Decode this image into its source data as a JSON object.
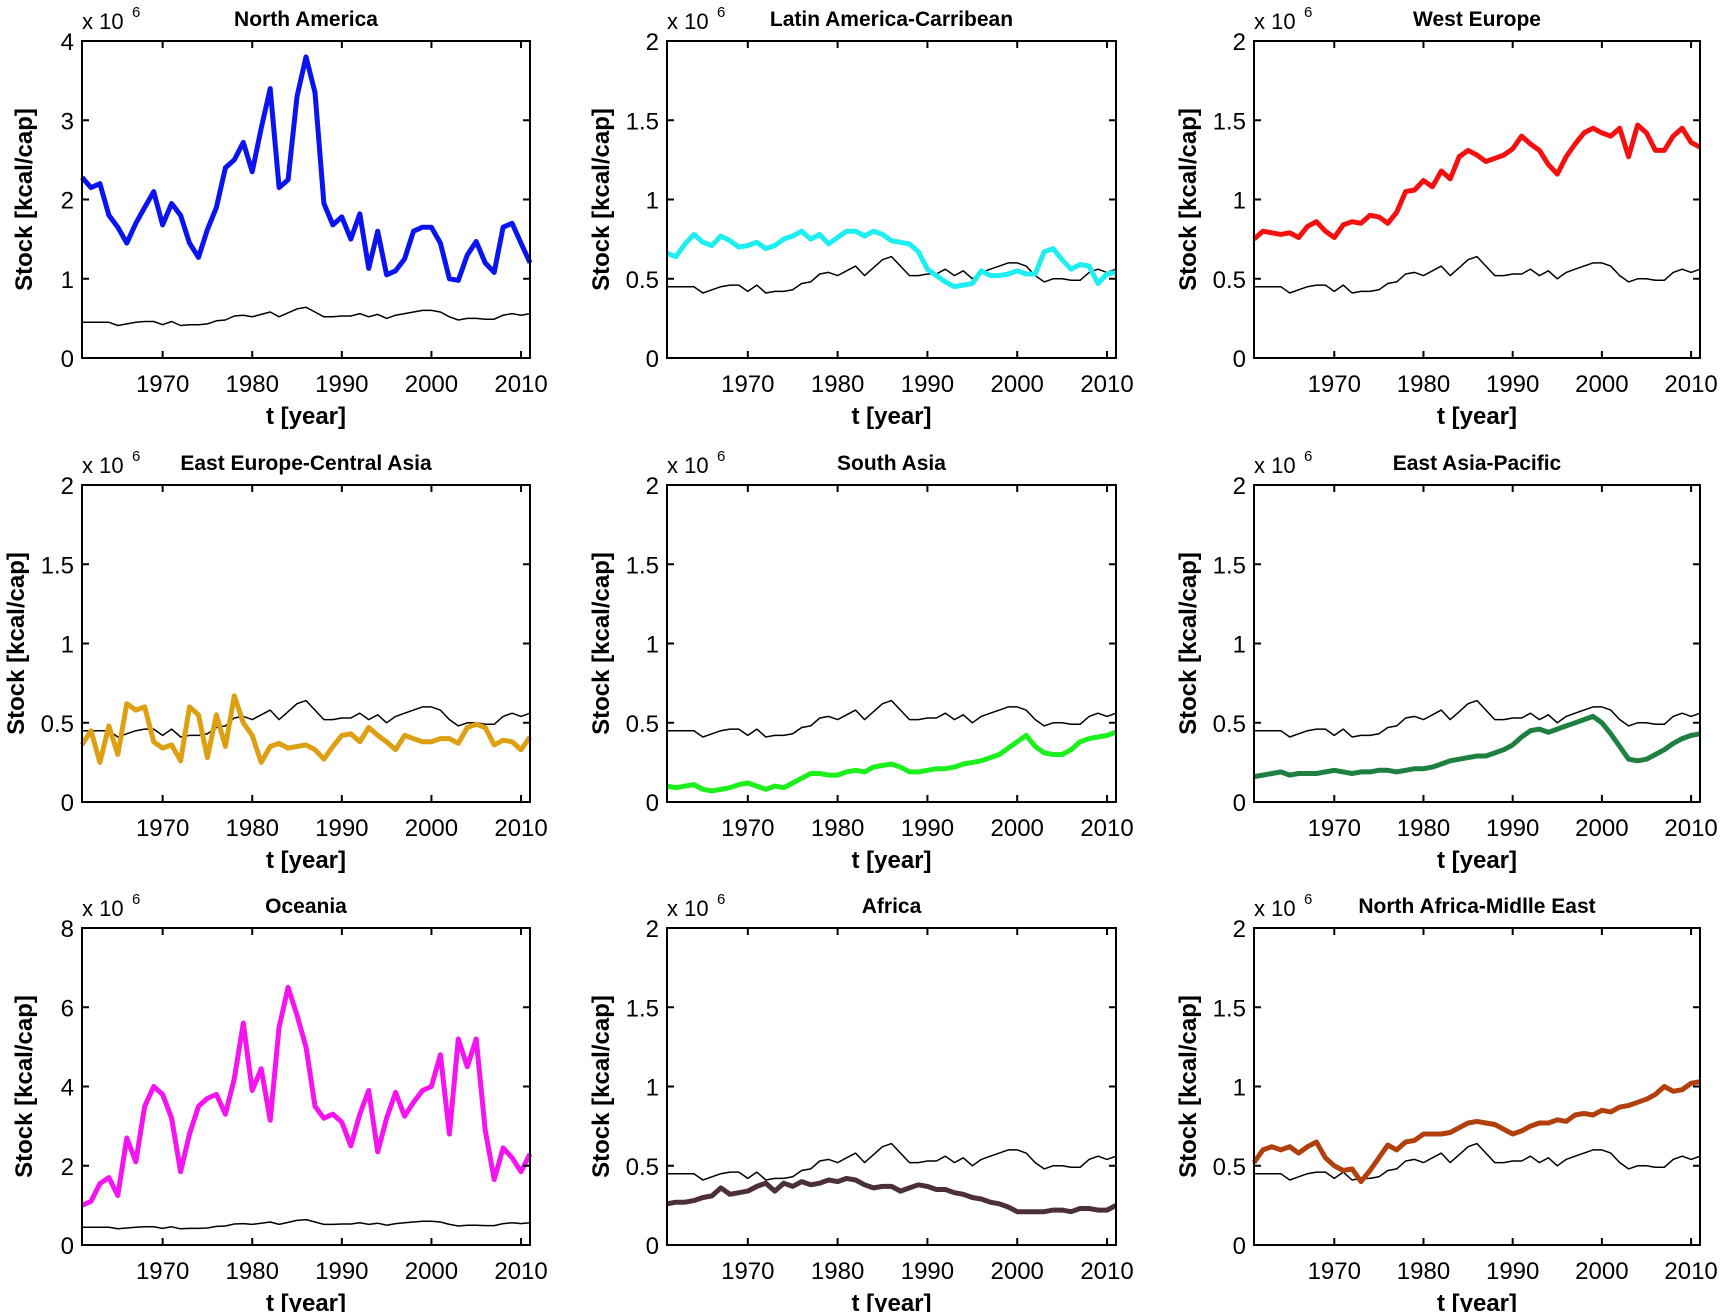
{
  "chart_data": {
    "type": "line",
    "layout": "3x3 grid of line subplots",
    "x": [
      1961,
      1962,
      1963,
      1964,
      1965,
      1966,
      1967,
      1968,
      1969,
      1970,
      1971,
      1972,
      1973,
      1974,
      1975,
      1976,
      1977,
      1978,
      1979,
      1980,
      1981,
      1982,
      1983,
      1984,
      1985,
      1986,
      1987,
      1988,
      1989,
      1990,
      1991,
      1992,
      1993,
      1994,
      1995,
      1996,
      1997,
      1998,
      1999,
      2000,
      2001,
      2002,
      2003,
      2004,
      2005,
      2006,
      2007,
      2008,
      2009,
      2010,
      2011
    ],
    "xlim": [
      1961,
      2011
    ],
    "xticks": [
      "1970",
      "1980",
      "1990",
      "2000",
      "2010"
    ],
    "xlabel": "t [year]",
    "ylabel": "Stock [kcal/cap]",
    "y_multiplier": "x 10",
    "y_multiplier_exp": "6",
    "grid": false,
    "reference_series": {
      "color": "#000000",
      "values": [
        0.45,
        0.45,
        0.45,
        0.45,
        0.41,
        0.43,
        0.45,
        0.46,
        0.46,
        0.42,
        0.46,
        0.41,
        0.42,
        0.42,
        0.43,
        0.47,
        0.48,
        0.53,
        0.54,
        0.52,
        0.55,
        0.58,
        0.52,
        0.57,
        0.62,
        0.64,
        0.58,
        0.52,
        0.52,
        0.53,
        0.53,
        0.56,
        0.52,
        0.55,
        0.5,
        0.54,
        0.56,
        0.58,
        0.6,
        0.6,
        0.58,
        0.52,
        0.48,
        0.5,
        0.5,
        0.49,
        0.49,
        0.54,
        0.56,
        0.54,
        0.56
      ]
    },
    "panels": [
      {
        "title": "North America",
        "color": "#0a14f0",
        "ylim": [
          0,
          4
        ],
        "yticks": [
          "0",
          "1",
          "2",
          "3",
          "4"
        ],
        "values": [
          2.28,
          2.15,
          2.2,
          1.8,
          1.65,
          1.45,
          1.7,
          1.9,
          2.1,
          1.68,
          1.95,
          1.8,
          1.45,
          1.27,
          1.62,
          1.9,
          2.4,
          2.5,
          2.72,
          2.35,
          2.9,
          3.4,
          2.15,
          2.25,
          3.3,
          3.8,
          3.35,
          1.95,
          1.68,
          1.78,
          1.5,
          1.82,
          1.13,
          1.6,
          1.05,
          1.1,
          1.25,
          1.6,
          1.65,
          1.65,
          1.45,
          1.0,
          0.98,
          1.3,
          1.47,
          1.2,
          1.08,
          1.65,
          1.7,
          1.45,
          1.2
        ]
      },
      {
        "title": "Latin America-Carribean",
        "color": "#1eeef0",
        "ylim": [
          0,
          2
        ],
        "yticks": [
          "0",
          "0.5",
          "1",
          "1.5",
          "2"
        ],
        "values": [
          0.66,
          0.64,
          0.72,
          0.78,
          0.73,
          0.71,
          0.77,
          0.74,
          0.7,
          0.71,
          0.73,
          0.69,
          0.71,
          0.75,
          0.77,
          0.8,
          0.75,
          0.78,
          0.72,
          0.76,
          0.8,
          0.8,
          0.77,
          0.8,
          0.78,
          0.74,
          0.73,
          0.72,
          0.67,
          0.56,
          0.52,
          0.48,
          0.45,
          0.46,
          0.47,
          0.55,
          0.52,
          0.52,
          0.53,
          0.55,
          0.53,
          0.53,
          0.67,
          0.69,
          0.62,
          0.56,
          0.59,
          0.58,
          0.47,
          0.53,
          0.54
        ]
      },
      {
        "title": "West Europe",
        "color": "#f51010",
        "ylim": [
          0,
          2
        ],
        "yticks": [
          "0",
          "0.5",
          "1",
          "1.5",
          "2"
        ],
        "values": [
          0.75,
          0.8,
          0.79,
          0.78,
          0.79,
          0.76,
          0.83,
          0.86,
          0.8,
          0.76,
          0.84,
          0.86,
          0.85,
          0.9,
          0.89,
          0.85,
          0.92,
          1.05,
          1.06,
          1.12,
          1.08,
          1.18,
          1.13,
          1.27,
          1.31,
          1.28,
          1.24,
          1.26,
          1.28,
          1.32,
          1.4,
          1.35,
          1.31,
          1.22,
          1.16,
          1.27,
          1.35,
          1.42,
          1.45,
          1.42,
          1.4,
          1.45,
          1.27,
          1.47,
          1.42,
          1.31,
          1.31,
          1.4,
          1.45,
          1.36,
          1.33
        ]
      },
      {
        "title": "East Europe-Central Asia",
        "color": "#dca012",
        "ylim": [
          0,
          2
        ],
        "yticks": [
          "0",
          "0.5",
          "1",
          "1.5",
          "2"
        ],
        "values": [
          0.36,
          0.45,
          0.25,
          0.48,
          0.3,
          0.62,
          0.58,
          0.6,
          0.38,
          0.34,
          0.36,
          0.26,
          0.6,
          0.55,
          0.28,
          0.55,
          0.35,
          0.67,
          0.5,
          0.42,
          0.25,
          0.35,
          0.37,
          0.34,
          0.35,
          0.36,
          0.33,
          0.27,
          0.35,
          0.42,
          0.43,
          0.38,
          0.47,
          0.42,
          0.38,
          0.33,
          0.42,
          0.4,
          0.38,
          0.38,
          0.4,
          0.4,
          0.37,
          0.47,
          0.49,
          0.47,
          0.36,
          0.39,
          0.38,
          0.33,
          0.41
        ]
      },
      {
        "title": "South Asia",
        "color": "#1cf01c",
        "ylim": [
          0,
          2
        ],
        "yticks": [
          "0",
          "0.5",
          "1",
          "1.5",
          "2"
        ],
        "values": [
          0.1,
          0.09,
          0.1,
          0.11,
          0.08,
          0.07,
          0.08,
          0.09,
          0.11,
          0.12,
          0.1,
          0.08,
          0.1,
          0.09,
          0.12,
          0.15,
          0.18,
          0.18,
          0.17,
          0.17,
          0.19,
          0.2,
          0.19,
          0.22,
          0.23,
          0.24,
          0.22,
          0.19,
          0.19,
          0.2,
          0.21,
          0.21,
          0.22,
          0.24,
          0.25,
          0.26,
          0.28,
          0.3,
          0.34,
          0.38,
          0.42,
          0.35,
          0.31,
          0.3,
          0.3,
          0.33,
          0.38,
          0.4,
          0.41,
          0.42,
          0.44
        ]
      },
      {
        "title": "East Asia-Pacific",
        "color": "#1e8040",
        "ylim": [
          0,
          2
        ],
        "yticks": [
          "0",
          "0.5",
          "1",
          "1.5",
          "2"
        ],
        "values": [
          0.16,
          0.17,
          0.18,
          0.19,
          0.17,
          0.18,
          0.18,
          0.18,
          0.19,
          0.2,
          0.19,
          0.18,
          0.19,
          0.19,
          0.2,
          0.2,
          0.19,
          0.2,
          0.21,
          0.21,
          0.22,
          0.24,
          0.26,
          0.27,
          0.28,
          0.29,
          0.29,
          0.31,
          0.33,
          0.36,
          0.41,
          0.45,
          0.46,
          0.44,
          0.46,
          0.48,
          0.5,
          0.52,
          0.54,
          0.5,
          0.43,
          0.35,
          0.27,
          0.26,
          0.27,
          0.3,
          0.33,
          0.37,
          0.4,
          0.42,
          0.43
        ]
      },
      {
        "title": "Oceania",
        "color": "#f514f0",
        "ylim": [
          0,
          8
        ],
        "yticks": [
          "0",
          "2",
          "4",
          "6",
          "8"
        ],
        "values": [
          1.0,
          1.1,
          1.55,
          1.7,
          1.25,
          2.7,
          2.1,
          3.5,
          4.0,
          3.8,
          3.2,
          1.85,
          2.8,
          3.5,
          3.7,
          3.8,
          3.3,
          4.2,
          5.6,
          3.9,
          4.45,
          3.15,
          5.5,
          6.5,
          5.8,
          5.0,
          3.5,
          3.2,
          3.3,
          3.1,
          2.5,
          3.3,
          3.9,
          2.35,
          3.2,
          3.85,
          3.25,
          3.6,
          3.9,
          4.0,
          4.8,
          2.8,
          5.2,
          4.5,
          5.2,
          2.9,
          1.65,
          2.45,
          2.2,
          1.85,
          2.3
        ]
      },
      {
        "title": "Africa",
        "color": "#4b3035",
        "ylim": [
          0,
          2
        ],
        "yticks": [
          "0",
          "0.5",
          "1",
          "1.5",
          "2"
        ],
        "values": [
          0.26,
          0.27,
          0.27,
          0.28,
          0.3,
          0.31,
          0.36,
          0.32,
          0.33,
          0.34,
          0.37,
          0.39,
          0.34,
          0.39,
          0.37,
          0.4,
          0.38,
          0.39,
          0.41,
          0.4,
          0.42,
          0.41,
          0.38,
          0.36,
          0.37,
          0.37,
          0.34,
          0.36,
          0.38,
          0.37,
          0.35,
          0.35,
          0.33,
          0.32,
          0.3,
          0.29,
          0.27,
          0.26,
          0.24,
          0.21,
          0.21,
          0.21,
          0.21,
          0.22,
          0.22,
          0.21,
          0.23,
          0.23,
          0.22,
          0.22,
          0.25
        ]
      },
      {
        "title": "North Africa-Midlle East",
        "color": "#b2400c",
        "ylim": [
          0,
          2
        ],
        "yticks": [
          "0",
          "0.5",
          "1",
          "1.5",
          "2"
        ],
        "values": [
          0.52,
          0.6,
          0.62,
          0.6,
          0.62,
          0.58,
          0.62,
          0.65,
          0.55,
          0.5,
          0.47,
          0.48,
          0.4,
          0.47,
          0.55,
          0.63,
          0.6,
          0.65,
          0.66,
          0.7,
          0.7,
          0.7,
          0.71,
          0.74,
          0.77,
          0.78,
          0.77,
          0.76,
          0.73,
          0.7,
          0.72,
          0.75,
          0.77,
          0.77,
          0.79,
          0.78,
          0.82,
          0.83,
          0.82,
          0.85,
          0.84,
          0.87,
          0.88,
          0.9,
          0.92,
          0.95,
          1.0,
          0.97,
          0.98,
          1.02,
          1.03
        ]
      }
    ]
  }
}
